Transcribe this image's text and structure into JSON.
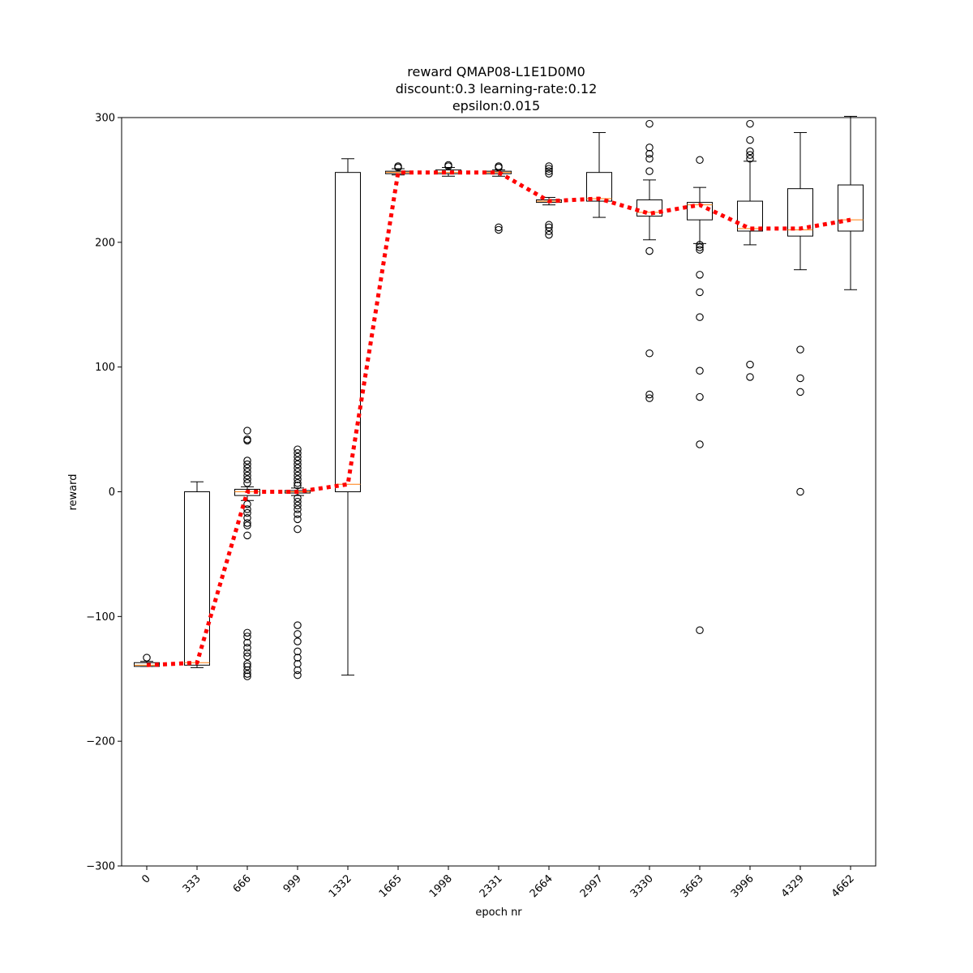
{
  "chart_data": {
    "type": "box",
    "title_lines": [
      "reward QMAP08-L1E1D0M0",
      "discount:0.3 learning-rate:0.12",
      "epsilon:0.015"
    ],
    "xlabel": "epoch nr",
    "ylabel": "reward",
    "ylim": [
      -300,
      300
    ],
    "yticks": [
      -300,
      -200,
      -100,
      0,
      100,
      200,
      300
    ],
    "categories": [
      "0",
      "333",
      "666",
      "999",
      "1332",
      "1665",
      "1998",
      "2331",
      "2664",
      "2997",
      "3330",
      "3663",
      "3996",
      "4329",
      "4662"
    ],
    "boxes": [
      {
        "whislo": -140,
        "q1": -140,
        "med": -139,
        "q3": -137,
        "whishi": -136,
        "fliers": [
          -133
        ]
      },
      {
        "whislo": -141,
        "q1": -139,
        "med": -137,
        "q3": 0,
        "whishi": 8,
        "fliers": []
      },
      {
        "whislo": -7,
        "q1": -3,
        "med": 0,
        "q3": 2,
        "whishi": 4,
        "fliers": [
          49,
          42,
          41,
          25,
          22,
          19,
          16,
          13,
          10,
          7,
          -10,
          -14,
          -17,
          -21,
          -25,
          -27,
          -35,
          -113,
          -116,
          -121,
          -125,
          -129,
          -132,
          -138,
          -140,
          -143,
          -146,
          -148
        ]
      },
      {
        "whislo": -3,
        "q1": -1,
        "med": 0,
        "q3": 1,
        "whishi": 3,
        "fliers": [
          34,
          31,
          28,
          25,
          22,
          19,
          16,
          13,
          10,
          7,
          5,
          -5,
          -8,
          -11,
          -14,
          -18,
          -22,
          -30,
          -107,
          -114,
          -120,
          -128,
          -133,
          -138,
          -143,
          -147
        ]
      },
      {
        "whislo": -147,
        "q1": 0,
        "med": 6,
        "q3": 256,
        "whishi": 267,
        "fliers": []
      },
      {
        "whislo": 254,
        "q1": 255,
        "med": 256,
        "q3": 257,
        "whishi": 259,
        "fliers": [
          261,
          260
        ]
      },
      {
        "whislo": 253,
        "q1": 255,
        "med": 256,
        "q3": 258,
        "whishi": 260,
        "fliers": [
          262,
          261
        ]
      },
      {
        "whislo": 253,
        "q1": 255,
        "med": 256,
        "q3": 257,
        "whishi": 258,
        "fliers": [
          261,
          260,
          212,
          210
        ]
      },
      {
        "whislo": 230,
        "q1": 232,
        "med": 233,
        "q3": 234,
        "whishi": 236,
        "fliers": [
          261,
          259,
          257,
          255,
          214,
          212,
          209,
          206
        ]
      },
      {
        "whislo": 220,
        "q1": 233,
        "med": 235,
        "q3": 256,
        "whishi": 288,
        "fliers": []
      },
      {
        "whislo": 202,
        "q1": 221,
        "med": 224,
        "q3": 234,
        "whishi": 250,
        "fliers": [
          295,
          276,
          271,
          267,
          257,
          193,
          111,
          78,
          75
        ]
      },
      {
        "whislo": 199,
        "q1": 218,
        "med": 230,
        "q3": 232,
        "whishi": 244,
        "fliers": [
          266,
          198,
          196,
          194,
          174,
          160,
          140,
          97,
          76,
          38,
          -111
        ]
      },
      {
        "whislo": 198,
        "q1": 209,
        "med": 211,
        "q3": 233,
        "whishi": 265,
        "fliers": [
          295,
          282,
          273,
          270,
          267,
          102,
          92
        ]
      },
      {
        "whislo": 178,
        "q1": 205,
        "med": 210,
        "q3": 243,
        "whishi": 288,
        "fliers": [
          114,
          91,
          80,
          0
        ]
      },
      {
        "whislo": 162,
        "q1": 209,
        "med": 218,
        "q3": 246,
        "whishi": 301,
        "fliers": []
      }
    ],
    "mean_line": {
      "values": [
        -139,
        -137,
        0,
        0,
        6,
        256,
        256,
        256,
        233,
        235,
        223,
        230,
        211,
        211,
        218
      ]
    },
    "colors": {
      "box": "#000000",
      "median": "#ff7f0e",
      "mean_line": "#ff0000"
    },
    "grid": false
  }
}
